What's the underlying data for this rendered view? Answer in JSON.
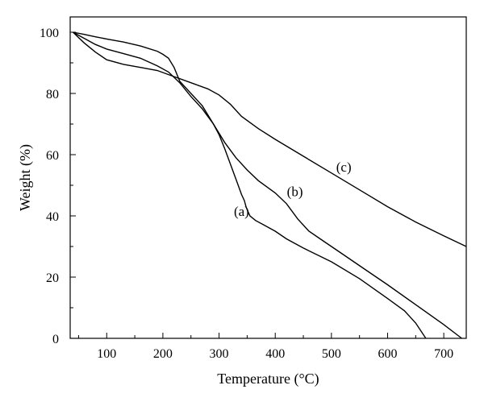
{
  "chart_data": {
    "type": "line",
    "xlabel": "Temperature (°C)",
    "ylabel": "Weight (%)",
    "xlim": [
      35,
      740
    ],
    "ylim": [
      0,
      105
    ],
    "x_ticks": [
      100,
      200,
      300,
      400,
      500,
      600,
      700
    ],
    "y_ticks": [
      0,
      20,
      40,
      60,
      80,
      100
    ],
    "grid": false,
    "legend": "none",
    "series": [
      {
        "name": "(a)",
        "label_at": [
          340,
          40
        ],
        "x": [
          40,
          60,
          80,
          100,
          130,
          160,
          190,
          210,
          230,
          250,
          270,
          290,
          300,
          310,
          320,
          330,
          340,
          345,
          348,
          350,
          355,
          365,
          380,
          400,
          420,
          450,
          500,
          550,
          600,
          630,
          650,
          668
        ],
        "y": [
          100,
          98,
          96,
          94.5,
          93,
          91.5,
          89,
          87,
          83.5,
          79,
          75,
          70,
          66.5,
          62,
          57,
          52,
          47,
          45,
          43,
          42,
          40,
          38.5,
          37,
          35,
          32.5,
          29.5,
          25,
          19.5,
          13,
          9,
          5,
          0
        ]
      },
      {
        "name": "(b)",
        "label_at": [
          435,
          46.5
        ],
        "x": [
          40,
          60,
          80,
          100,
          130,
          160,
          190,
          200,
          210,
          220,
          230,
          250,
          270,
          290,
          310,
          330,
          350,
          370,
          400,
          420,
          440,
          460,
          480,
          520,
          560,
          600,
          650,
          700,
          732
        ],
        "y": [
          100,
          99.3,
          98.5,
          97.8,
          96.8,
          95.5,
          93.8,
          92.8,
          91.5,
          88.5,
          84,
          80,
          76,
          70,
          64,
          59,
          55,
          51.5,
          47.5,
          44,
          39,
          35,
          32.5,
          27.5,
          22.5,
          17.5,
          11,
          4.5,
          0
        ]
      },
      {
        "name": "(c)",
        "label_at": [
          522,
          54.5
        ],
        "x": [
          40,
          60,
          80,
          100,
          130,
          160,
          190,
          220,
          250,
          280,
          300,
          320,
          340,
          370,
          400,
          450,
          500,
          550,
          600,
          650,
          700,
          740
        ],
        "y": [
          100,
          96.5,
          93.5,
          91,
          89.5,
          88.5,
          87.5,
          85.5,
          83.5,
          81.5,
          79.5,
          76.5,
          72.5,
          68.5,
          65,
          59.5,
          54,
          48.5,
          43,
          38,
          33.5,
          30
        ]
      }
    ]
  }
}
